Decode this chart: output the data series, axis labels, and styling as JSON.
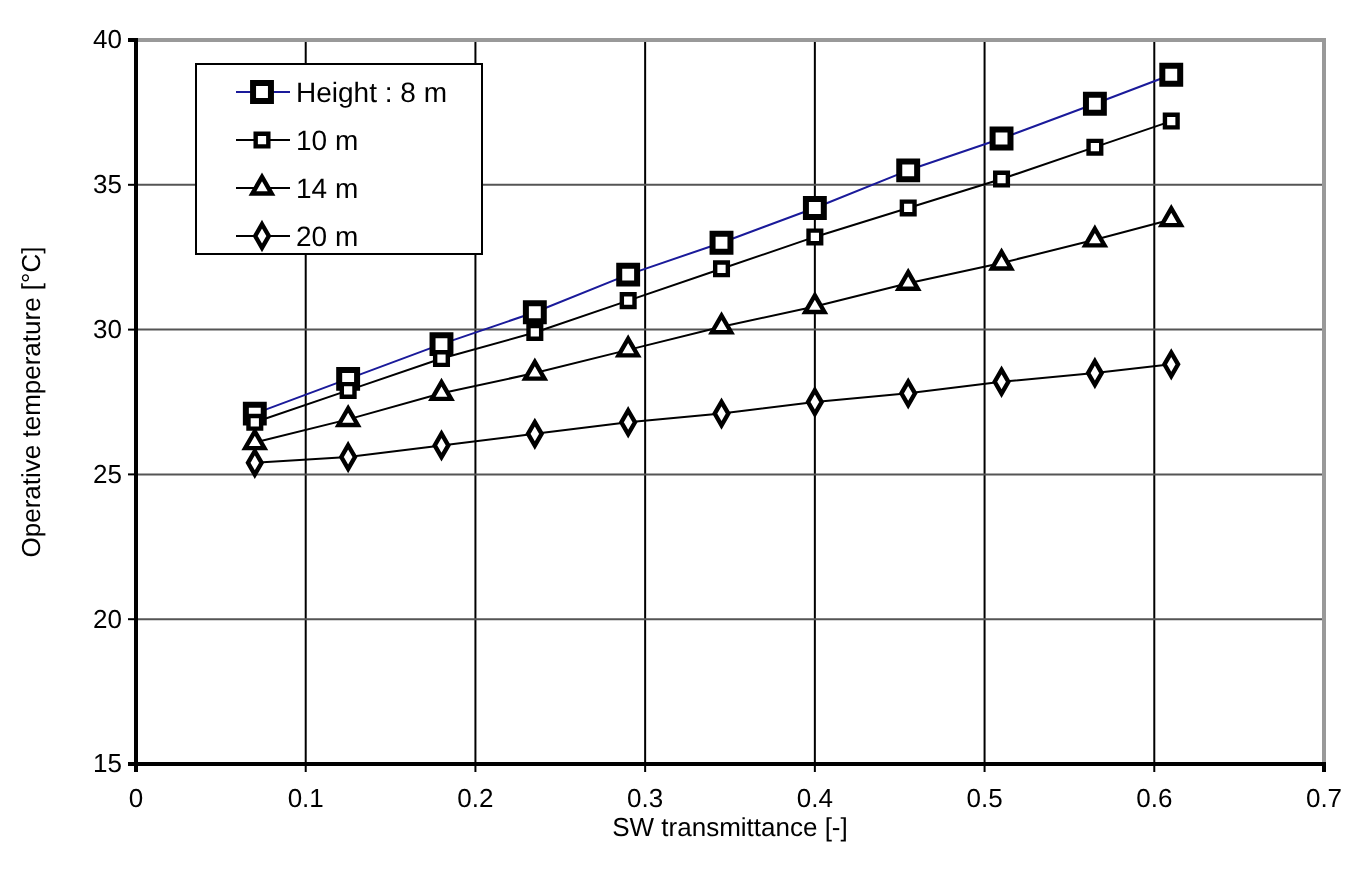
{
  "chart_data": {
    "type": "line",
    "xlabel": "SW transmittance [-]",
    "ylabel": "Operative temperature [°C]",
    "x": [
      0.07,
      0.125,
      0.18,
      0.235,
      0.29,
      0.345,
      0.4,
      0.455,
      0.51,
      0.565,
      0.61
    ],
    "series": [
      {
        "name": "Height : 8 m",
        "color": "#1a1a9a",
        "marker": "square",
        "values": [
          27.1,
          28.3,
          29.5,
          30.6,
          31.9,
          33.0,
          34.2,
          35.5,
          36.6,
          37.8,
          38.8
        ]
      },
      {
        "name": "10 m",
        "color": "#000000",
        "marker": "square",
        "values": [
          26.8,
          27.9,
          29.0,
          29.9,
          31.0,
          32.1,
          33.2,
          34.2,
          35.2,
          36.3,
          37.2
        ]
      },
      {
        "name": "14 m",
        "color": "#000000",
        "marker": "triangle",
        "values": [
          26.1,
          26.9,
          27.8,
          28.5,
          29.3,
          30.1,
          30.8,
          31.6,
          32.3,
          33.1,
          33.8
        ]
      },
      {
        "name": "20 m",
        "color": "#000000",
        "marker": "diamond",
        "values": [
          25.4,
          25.6,
          26.0,
          26.4,
          26.8,
          27.1,
          27.5,
          27.8,
          28.2,
          28.5,
          28.8
        ]
      }
    ],
    "xlim": [
      0,
      0.7
    ],
    "xticks": [
      0,
      0.1,
      0.2,
      0.3,
      0.4,
      0.5,
      0.6,
      0.7
    ],
    "ylim": [
      15,
      40
    ],
    "yticks": [
      15,
      20,
      25,
      30,
      35,
      40
    ],
    "grid": true,
    "legend": "top left",
    "line_style": "solid"
  }
}
